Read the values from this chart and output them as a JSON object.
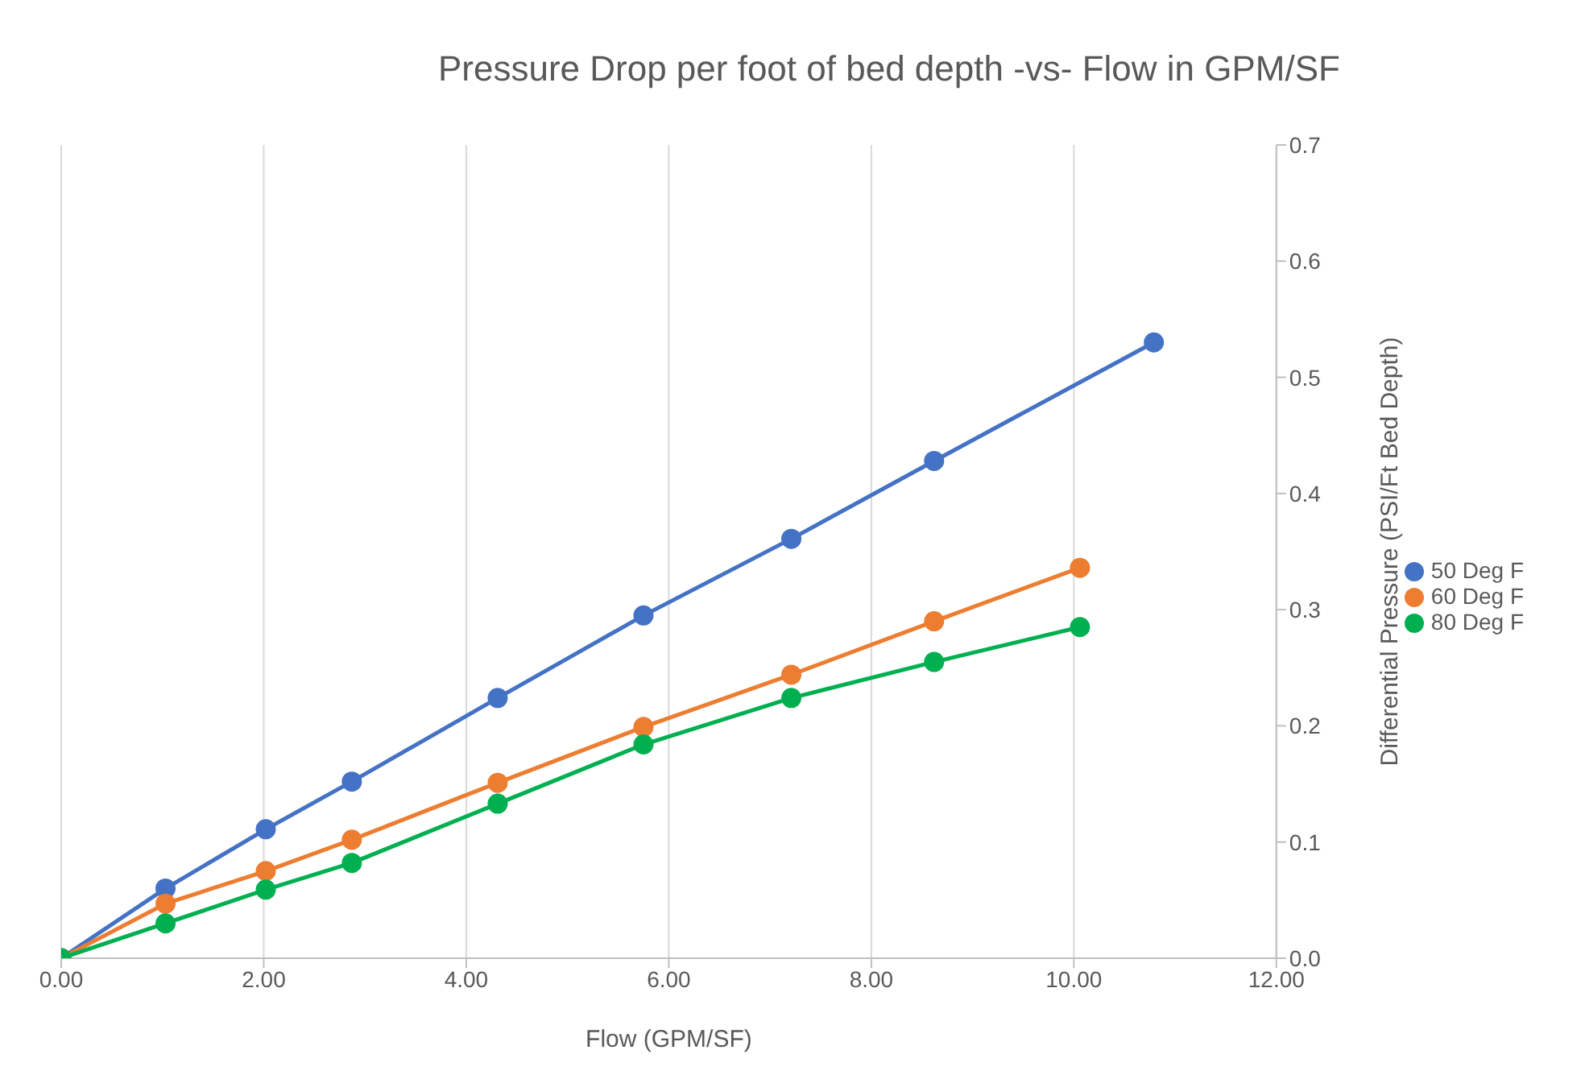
{
  "chart_data": {
    "type": "line",
    "title": "Pressure Drop per foot of bed depth -vs- Flow in GPM/SF",
    "xlabel": "Flow (GPM/SF)",
    "ylabel": "Differential Pressure (PSI/Ft Bed Depth)",
    "series": [
      {
        "name": "50 Deg F",
        "color": "#4472c4",
        "x": [
          0,
          1.03,
          2.02,
          2.87,
          4.31,
          5.75,
          7.21,
          8.62,
          10.79
        ],
        "values": [
          0,
          0.06,
          0.111,
          0.152,
          0.224,
          0.295,
          0.361,
          0.428,
          0.53
        ]
      },
      {
        "name": "60 Deg F",
        "color": "#ed7d31",
        "x": [
          0,
          1.03,
          2.02,
          2.87,
          4.31,
          5.75,
          7.21,
          8.62,
          10.06
        ],
        "values": [
          0,
          0.047,
          0.075,
          0.102,
          0.151,
          0.199,
          0.244,
          0.29,
          0.336
        ]
      },
      {
        "name": "80 Deg F",
        "color": "#00b050",
        "x": [
          0,
          1.03,
          2.02,
          2.87,
          4.31,
          5.75,
          7.21,
          8.62,
          10.06
        ],
        "values": [
          0,
          0.03,
          0.059,
          0.082,
          0.133,
          0.184,
          0.224,
          0.255,
          0.285
        ]
      }
    ],
    "xlim": [
      0,
      12
    ],
    "xticks": [
      {
        "value": 0,
        "label": "0.00"
      },
      {
        "value": 2,
        "label": "2.00"
      },
      {
        "value": 4,
        "label": "4.00"
      },
      {
        "value": 6,
        "label": "6.00"
      },
      {
        "value": 8,
        "label": "8.00"
      },
      {
        "value": 10,
        "label": "10.00"
      },
      {
        "value": 12,
        "label": "12.00"
      }
    ],
    "ylim": [
      0,
      0.7
    ],
    "yticks": [
      {
        "value": 0,
        "label": "0.0"
      },
      {
        "value": 0.1,
        "label": "0.1"
      },
      {
        "value": 0.2,
        "label": "0.2"
      },
      {
        "value": 0.3,
        "label": "0.3"
      },
      {
        "value": 0.4,
        "label": "0.4"
      },
      {
        "value": 0.5,
        "label": "0.5"
      },
      {
        "value": 0.6,
        "label": "0.6"
      },
      {
        "value": 0.7,
        "label": "0.7"
      }
    ],
    "grid": "x",
    "legend": "right",
    "marker": "circle",
    "line_style": "solid"
  }
}
